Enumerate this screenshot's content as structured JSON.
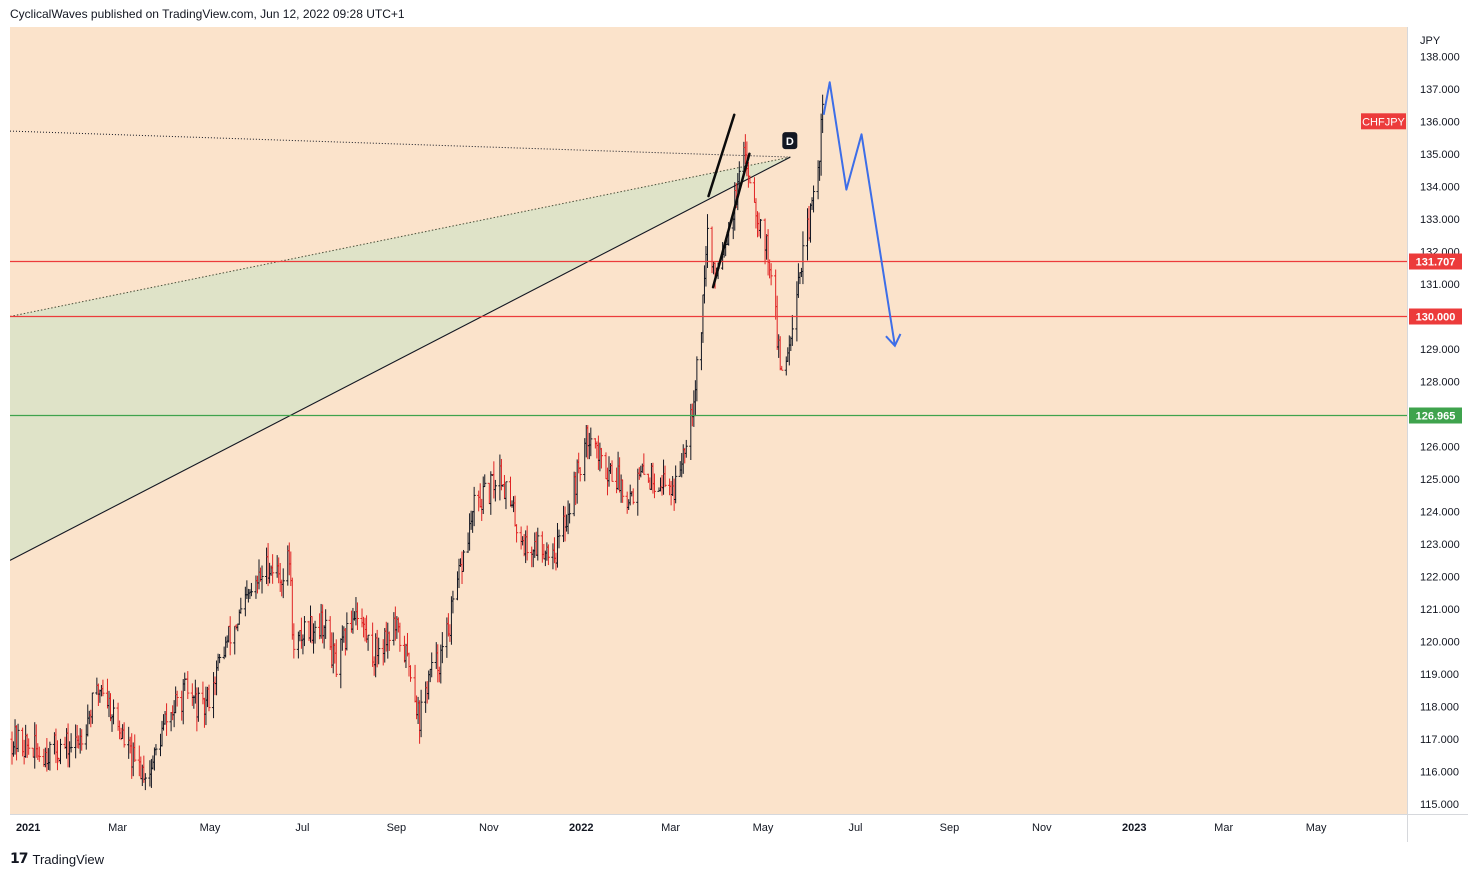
{
  "header": {
    "published_by": "CyclicalWaves published on TradingView.com, Jun 12, 2022 09:28 UTC+1"
  },
  "footer": {
    "brand": "TradingView",
    "logo_icon": "tradingview-logo-icon"
  },
  "colors": {
    "background": "#fbe3cb",
    "up_bar": "#131722",
    "down_bar": "#e02424",
    "resistance": "#ec3b3b",
    "support": "#3fa34d",
    "projection": "#3d6ee8",
    "wedge_fill": "#dfe3c8"
  },
  "chart_data": {
    "type": "ohlc",
    "symbol": "CHFJPY",
    "currency": "JPY",
    "ylim": [
      114.7,
      138.9
    ],
    "yticks": [
      "115.000",
      "116.000",
      "117.000",
      "118.000",
      "119.000",
      "120.000",
      "121.000",
      "122.000",
      "123.000",
      "124.000",
      "125.000",
      "126.000",
      "127.000",
      "128.000",
      "129.000",
      "130.000",
      "131.000",
      "132.000",
      "133.000",
      "134.000",
      "135.000",
      "136.000",
      "137.000",
      "138.000"
    ],
    "xaxis": {
      "range": [
        "2020-12-20",
        "2023-06-30"
      ],
      "ticks": [
        {
          "label": "2021",
          "date": "2021-01-01",
          "bold": true
        },
        {
          "label": "Mar",
          "date": "2021-03-01"
        },
        {
          "label": "May",
          "date": "2021-05-01"
        },
        {
          "label": "Jul",
          "date": "2021-07-01"
        },
        {
          "label": "Sep",
          "date": "2021-09-01"
        },
        {
          "label": "Nov",
          "date": "2021-11-01"
        },
        {
          "label": "2022",
          "date": "2022-01-01",
          "bold": true
        },
        {
          "label": "Mar",
          "date": "2022-03-01"
        },
        {
          "label": "May",
          "date": "2022-05-01"
        },
        {
          "label": "Jul",
          "date": "2022-07-01"
        },
        {
          "label": "Sep",
          "date": "2022-09-01"
        },
        {
          "label": "Nov",
          "date": "2022-11-01"
        },
        {
          "label": "2023",
          "date": "2023-01-01",
          "bold": true
        },
        {
          "label": "Mar",
          "date": "2023-03-01"
        },
        {
          "label": "May",
          "date": "2023-05-01"
        }
      ]
    },
    "price_path": [
      [
        "2020-12-21",
        117.0
      ],
      [
        "2021-01-08",
        116.6
      ],
      [
        "2021-02-01",
        116.8
      ],
      [
        "2021-02-18",
        118.7
      ],
      [
        "2021-03-01",
        117.4
      ],
      [
        "2021-03-12",
        116.2
      ],
      [
        "2021-03-22",
        116.0
      ],
      [
        "2021-04-01",
        117.5
      ],
      [
        "2021-04-15",
        118.5
      ],
      [
        "2021-04-26",
        117.8
      ],
      [
        "2021-05-10",
        119.8
      ],
      [
        "2021-05-25",
        121.2
      ],
      [
        "2021-06-08",
        122.4
      ],
      [
        "2021-06-18",
        122.0
      ],
      [
        "2021-06-22",
        122.6
      ],
      [
        "2021-06-25",
        119.6
      ],
      [
        "2021-07-02",
        120.4
      ],
      [
        "2021-07-14",
        120.6
      ],
      [
        "2021-07-23",
        119.2
      ],
      [
        "2021-08-05",
        121.1
      ],
      [
        "2021-08-16",
        119.6
      ],
      [
        "2021-08-30",
        120.5
      ],
      [
        "2021-09-10",
        119.2
      ],
      [
        "2021-09-16",
        117.6
      ],
      [
        "2021-09-22",
        118.9
      ],
      [
        "2021-10-01",
        119.6
      ],
      [
        "2021-10-08",
        121.0
      ],
      [
        "2021-10-14",
        122.4
      ],
      [
        "2021-10-22",
        124.1
      ],
      [
        "2021-11-01",
        124.6
      ],
      [
        "2021-11-08",
        125.3
      ],
      [
        "2021-11-16",
        124.0
      ],
      [
        "2021-11-26",
        122.8
      ],
      [
        "2021-12-03",
        123.0
      ],
      [
        "2021-12-15",
        122.8
      ],
      [
        "2021-12-24",
        124.2
      ],
      [
        "2021-12-31",
        125.5
      ],
      [
        "2022-01-07",
        126.6
      ],
      [
        "2022-01-14",
        125.4
      ],
      [
        "2022-01-21",
        125.3
      ],
      [
        "2022-02-01",
        124.5
      ],
      [
        "2022-02-10",
        125.1
      ],
      [
        "2022-02-22",
        125.0
      ],
      [
        "2022-03-04",
        124.7
      ],
      [
        "2022-03-10",
        126.2
      ],
      [
        "2022-03-16",
        127.6
      ],
      [
        "2022-03-21",
        129.8
      ],
      [
        "2022-03-25",
        132.6
      ],
      [
        "2022-03-29",
        131.2
      ],
      [
        "2022-04-05",
        132.3
      ],
      [
        "2022-04-12",
        133.5
      ],
      [
        "2022-04-19",
        135.0
      ],
      [
        "2022-04-27",
        133.2
      ],
      [
        "2022-05-02",
        132.3
      ],
      [
        "2022-05-06",
        131.5
      ],
      [
        "2022-05-12",
        128.3
      ],
      [
        "2022-05-17",
        129.0
      ],
      [
        "2022-05-23",
        131.0
      ],
      [
        "2022-06-01",
        133.0
      ],
      [
        "2022-06-06",
        134.5
      ],
      [
        "2022-06-09",
        136.5
      ],
      [
        "2022-06-10",
        137.5
      ]
    ],
    "horizontal_levels": [
      {
        "label": "131.707",
        "value": 131.707,
        "kind": "resistance"
      },
      {
        "label": "130.000",
        "value": 130.0,
        "kind": "resistance"
      },
      {
        "label": "126.965",
        "value": 126.965,
        "kind": "support"
      }
    ],
    "symbol_tag": {
      "label": "CHFJPY",
      "value": 136.0
    },
    "wedge": {
      "upper_line": [
        [
          "2020-12-20",
          130.0
        ],
        [
          "2022-05-19",
          134.9
        ]
      ],
      "lower_line": [
        [
          "2020-12-20",
          122.5
        ],
        [
          "2022-05-19",
          134.9
        ]
      ]
    },
    "dotted_line": [
      [
        "2020-12-20",
        135.7
      ],
      [
        "2022-05-19",
        134.9
      ]
    ],
    "channel_lines": [
      [
        [
          "2022-03-26",
          133.7
        ],
        [
          "2022-04-12",
          136.2
        ]
      ],
      [
        [
          "2022-03-29",
          130.9
        ],
        [
          "2022-04-22",
          135.0
        ]
      ]
    ],
    "pattern_label": {
      "text": "D",
      "date": "2022-05-19",
      "value": 135.3
    },
    "projection_path": [
      [
        "2022-06-10",
        136.2
      ],
      [
        "2022-06-14",
        137.2
      ],
      [
        "2022-06-25",
        133.9
      ],
      [
        "2022-07-05",
        135.6
      ],
      [
        "2022-07-27",
        129.1
      ]
    ]
  }
}
